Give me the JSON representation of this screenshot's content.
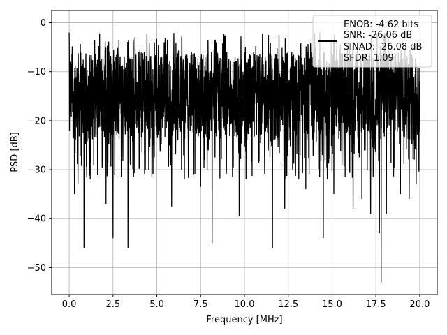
{
  "chart_data": {
    "type": "line",
    "xlabel": "Frequency [MHz]",
    "ylabel": "PSD [dB]",
    "xlim": [
      -1.0,
      21.0
    ],
    "ylim": [
      -55.5,
      2.5
    ],
    "x_ticks": [
      0.0,
      2.5,
      5.0,
      7.5,
      10.0,
      12.5,
      15.0,
      17.5,
      20.0
    ],
    "x_tick_labels": [
      "0.0",
      "2.5",
      "5.0",
      "7.5",
      "10.0",
      "12.5",
      "15.0",
      "17.5",
      "20.0"
    ],
    "y_ticks": [
      0,
      -10,
      -20,
      -30,
      -40,
      -50
    ],
    "y_tick_labels": [
      "0",
      "−10",
      "−20",
      "−30",
      "−40",
      "−50"
    ],
    "grid": true,
    "legend_placement": "top-right",
    "legend_lines": [
      "ENOB: -4.62 bits",
      "SNR: -26.06 dB",
      "SINAD: -26.08 dB",
      "SFDR: 1.09"
    ],
    "series": [
      {
        "color": "#000000",
        "x_range": [
          0.0,
          20.0
        ],
        "noise_band": [
          -24,
          -6
        ],
        "values": [
          [
            0.0,
            -2
          ],
          [
            0.02,
            -22
          ],
          [
            0.05,
            -8
          ],
          [
            0.1,
            -18
          ],
          [
            0.3,
            -35
          ],
          [
            0.5,
            -33
          ],
          [
            0.85,
            -46
          ],
          [
            1.2,
            -32
          ],
          [
            1.4,
            -29
          ],
          [
            2.1,
            -37
          ],
          [
            2.5,
            -44
          ],
          [
            3.35,
            -46
          ],
          [
            4.3,
            -31
          ],
          [
            5.85,
            -37.5
          ],
          [
            7.5,
            -33.5
          ],
          [
            8.15,
            -45
          ],
          [
            9.7,
            -39.5
          ],
          [
            11.6,
            -46
          ],
          [
            12.3,
            -38
          ],
          [
            13.1,
            -32
          ],
          [
            13.5,
            -34
          ],
          [
            14.5,
            -44
          ],
          [
            15.1,
            -35
          ],
          [
            16.2,
            -38
          ],
          [
            16.7,
            -36
          ],
          [
            17.2,
            -39
          ],
          [
            17.7,
            -43
          ],
          [
            17.8,
            -53
          ],
          [
            18.1,
            -39
          ],
          [
            18.9,
            -35
          ],
          [
            19.4,
            -36
          ],
          [
            19.8,
            -33
          ],
          [
            20.0,
            -12
          ]
        ]
      }
    ]
  }
}
